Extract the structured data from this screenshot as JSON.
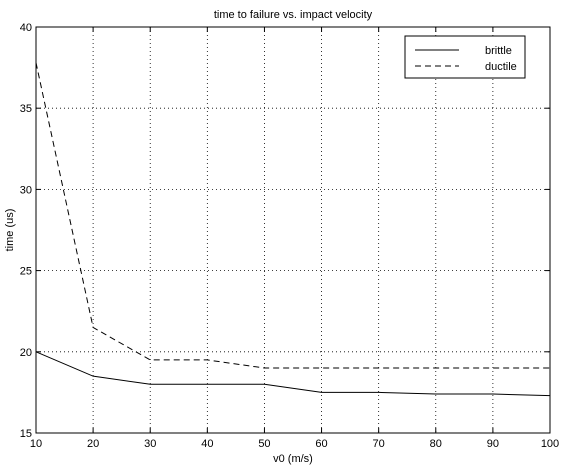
{
  "chart_data": {
    "type": "line",
    "title": "time to failure vs. impact velocity",
    "xlabel": "v0 (m/s)",
    "ylabel": "time (us)",
    "xlim": [
      10,
      100
    ],
    "ylim": [
      15,
      40
    ],
    "xticks": [
      10,
      20,
      30,
      40,
      50,
      60,
      70,
      80,
      90,
      100
    ],
    "yticks": [
      15,
      20,
      25,
      30,
      35,
      40
    ],
    "grid": true,
    "legend_position": "top-right",
    "series": [
      {
        "name": "brittle",
        "line_style": "solid",
        "x": [
          10,
          20,
          30,
          40,
          50,
          60,
          70,
          80,
          90,
          100
        ],
        "y": [
          20.0,
          18.5,
          18.0,
          18.0,
          18.0,
          17.5,
          17.5,
          17.4,
          17.4,
          17.3
        ]
      },
      {
        "name": "ductile",
        "line_style": "dashed",
        "x": [
          10,
          20,
          30,
          40,
          50,
          60,
          70,
          80,
          90,
          100
        ],
        "y": [
          37.8,
          21.5,
          19.5,
          19.5,
          19.0,
          19.0,
          19.0,
          19.0,
          19.0,
          19.0
        ]
      }
    ]
  }
}
